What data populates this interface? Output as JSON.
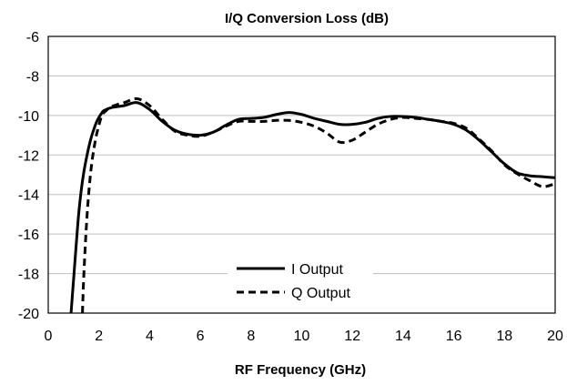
{
  "chart_data": {
    "type": "line",
    "title": "I/Q Conversion Loss (dB)",
    "xlabel": "RF Frequency (GHz)",
    "ylabel": "",
    "xlim": [
      0,
      20
    ],
    "ylim": [
      -20,
      -6
    ],
    "xticks": [
      0,
      2,
      4,
      6,
      8,
      10,
      12,
      14,
      16,
      18,
      20
    ],
    "yticks": [
      -20,
      -18,
      -16,
      -14,
      -12,
      -10,
      -8,
      -6
    ],
    "grid": "horizontal",
    "legend_position": "bottom-center",
    "series": [
      {
        "name": "I Output",
        "style": "solid",
        "color": "#000000",
        "x": [
          0.9,
          1.0,
          1.1,
          1.2,
          1.3,
          1.4,
          1.5,
          1.6,
          1.7,
          1.8,
          1.9,
          2.0,
          2.1,
          2.2,
          2.5,
          3.0,
          3.5,
          4.0,
          4.5,
          5.0,
          5.5,
          6.0,
          6.5,
          7.0,
          7.5,
          8.0,
          8.5,
          9.0,
          9.5,
          10.0,
          10.5,
          11.0,
          11.5,
          12.0,
          12.5,
          13.0,
          13.5,
          14.0,
          14.5,
          15.0,
          15.5,
          16.0,
          16.5,
          17.0,
          17.5,
          18.0,
          18.5,
          19.0,
          19.5,
          20.0
        ],
        "y": [
          -20.0,
          -18.3,
          -16.6,
          -15.0,
          -13.8,
          -12.9,
          -12.2,
          -11.6,
          -11.1,
          -10.7,
          -10.35,
          -10.1,
          -9.9,
          -9.75,
          -9.6,
          -9.5,
          -9.35,
          -9.7,
          -10.3,
          -10.75,
          -10.95,
          -11.0,
          -10.85,
          -10.5,
          -10.2,
          -10.15,
          -10.1,
          -9.95,
          -9.85,
          -9.95,
          -10.15,
          -10.3,
          -10.45,
          -10.45,
          -10.35,
          -10.15,
          -10.05,
          -10.05,
          -10.1,
          -10.2,
          -10.3,
          -10.45,
          -10.75,
          -11.25,
          -11.85,
          -12.45,
          -12.9,
          -13.05,
          -13.1,
          -13.15
        ]
      },
      {
        "name": "Q Output",
        "style": "dashed",
        "color": "#000000",
        "x": [
          1.35,
          1.4,
          1.5,
          1.6,
          1.7,
          1.8,
          1.9,
          2.0,
          2.1,
          2.2,
          2.5,
          3.0,
          3.5,
          4.0,
          4.5,
          5.0,
          5.5,
          6.0,
          6.5,
          7.0,
          7.5,
          8.0,
          8.5,
          9.0,
          9.5,
          10.0,
          10.5,
          11.0,
          11.5,
          12.0,
          12.5,
          13.0,
          13.5,
          14.0,
          14.5,
          15.0,
          15.5,
          16.0,
          16.5,
          17.0,
          17.5,
          18.0,
          18.5,
          19.0,
          19.5,
          20.0
        ],
        "y": [
          -20.0,
          -18.2,
          -15.7,
          -13.9,
          -12.6,
          -11.7,
          -11.0,
          -10.5,
          -10.05,
          -9.85,
          -9.55,
          -9.35,
          -9.15,
          -9.5,
          -10.2,
          -10.8,
          -11.0,
          -11.05,
          -10.85,
          -10.55,
          -10.3,
          -10.3,
          -10.3,
          -10.25,
          -10.25,
          -10.35,
          -10.55,
          -10.9,
          -11.35,
          -11.25,
          -10.85,
          -10.45,
          -10.2,
          -10.1,
          -10.15,
          -10.2,
          -10.3,
          -10.4,
          -10.65,
          -11.2,
          -11.8,
          -12.5,
          -12.95,
          -13.3,
          -13.6,
          -13.45
        ]
      }
    ]
  }
}
